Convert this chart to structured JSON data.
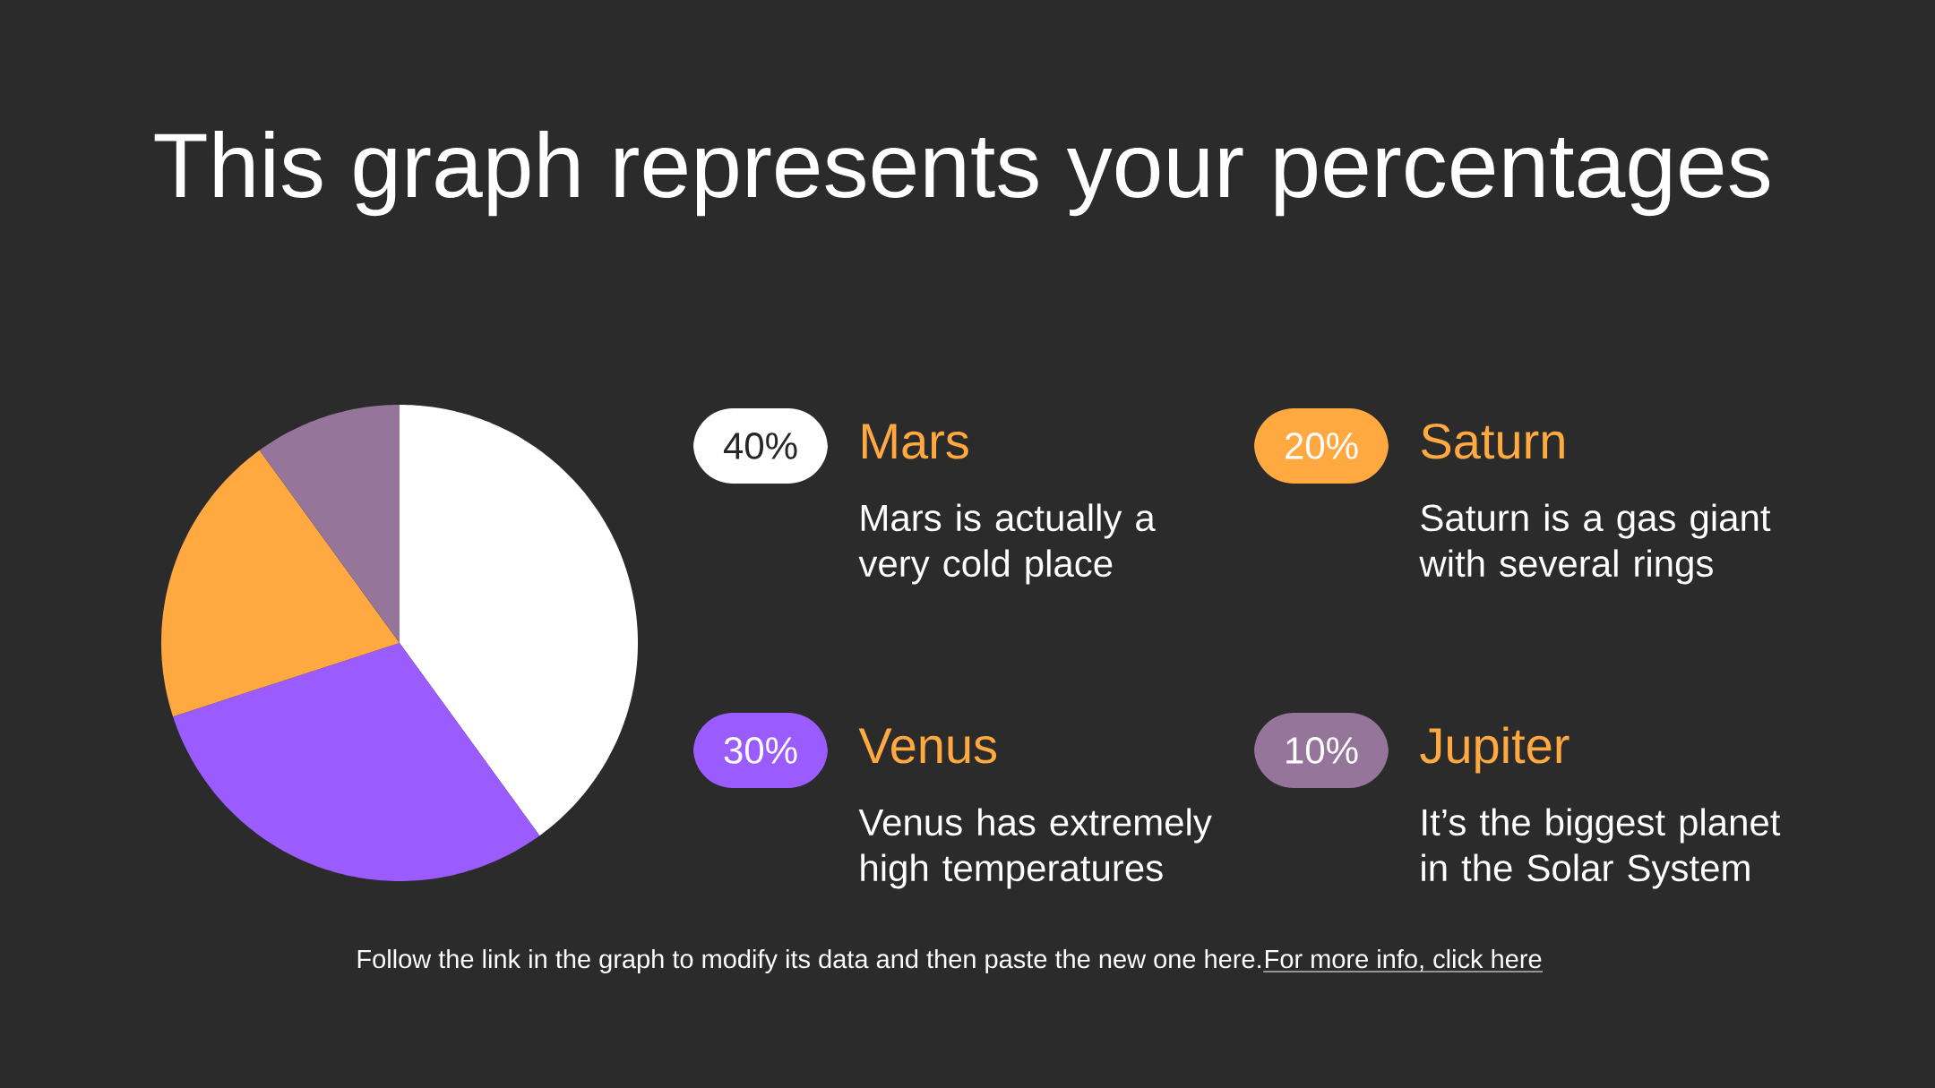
{
  "chart_data": {
    "type": "pie",
    "title": "This graph represents your percentages",
    "categories": [
      "Mars",
      "Venus",
      "Saturn",
      "Jupiter"
    ],
    "values": [
      40,
      30,
      20,
      10
    ],
    "colors": [
      "#ffffff",
      "#9b5cff",
      "#ffa940",
      "#957599"
    ],
    "value_labels": [
      "40%",
      "30%",
      "20%",
      "10%"
    ],
    "legend": "right",
    "annotations": [
      "Mars is actually a very cold place",
      "Venus has extremely high temperatures",
      "Saturn is a gas giant with several rings",
      "It’s the biggest planet in the Solar System",
      "Follow the link in the graph to modify its data and then paste the new one here.",
      "For more info, click here"
    ]
  }
}
